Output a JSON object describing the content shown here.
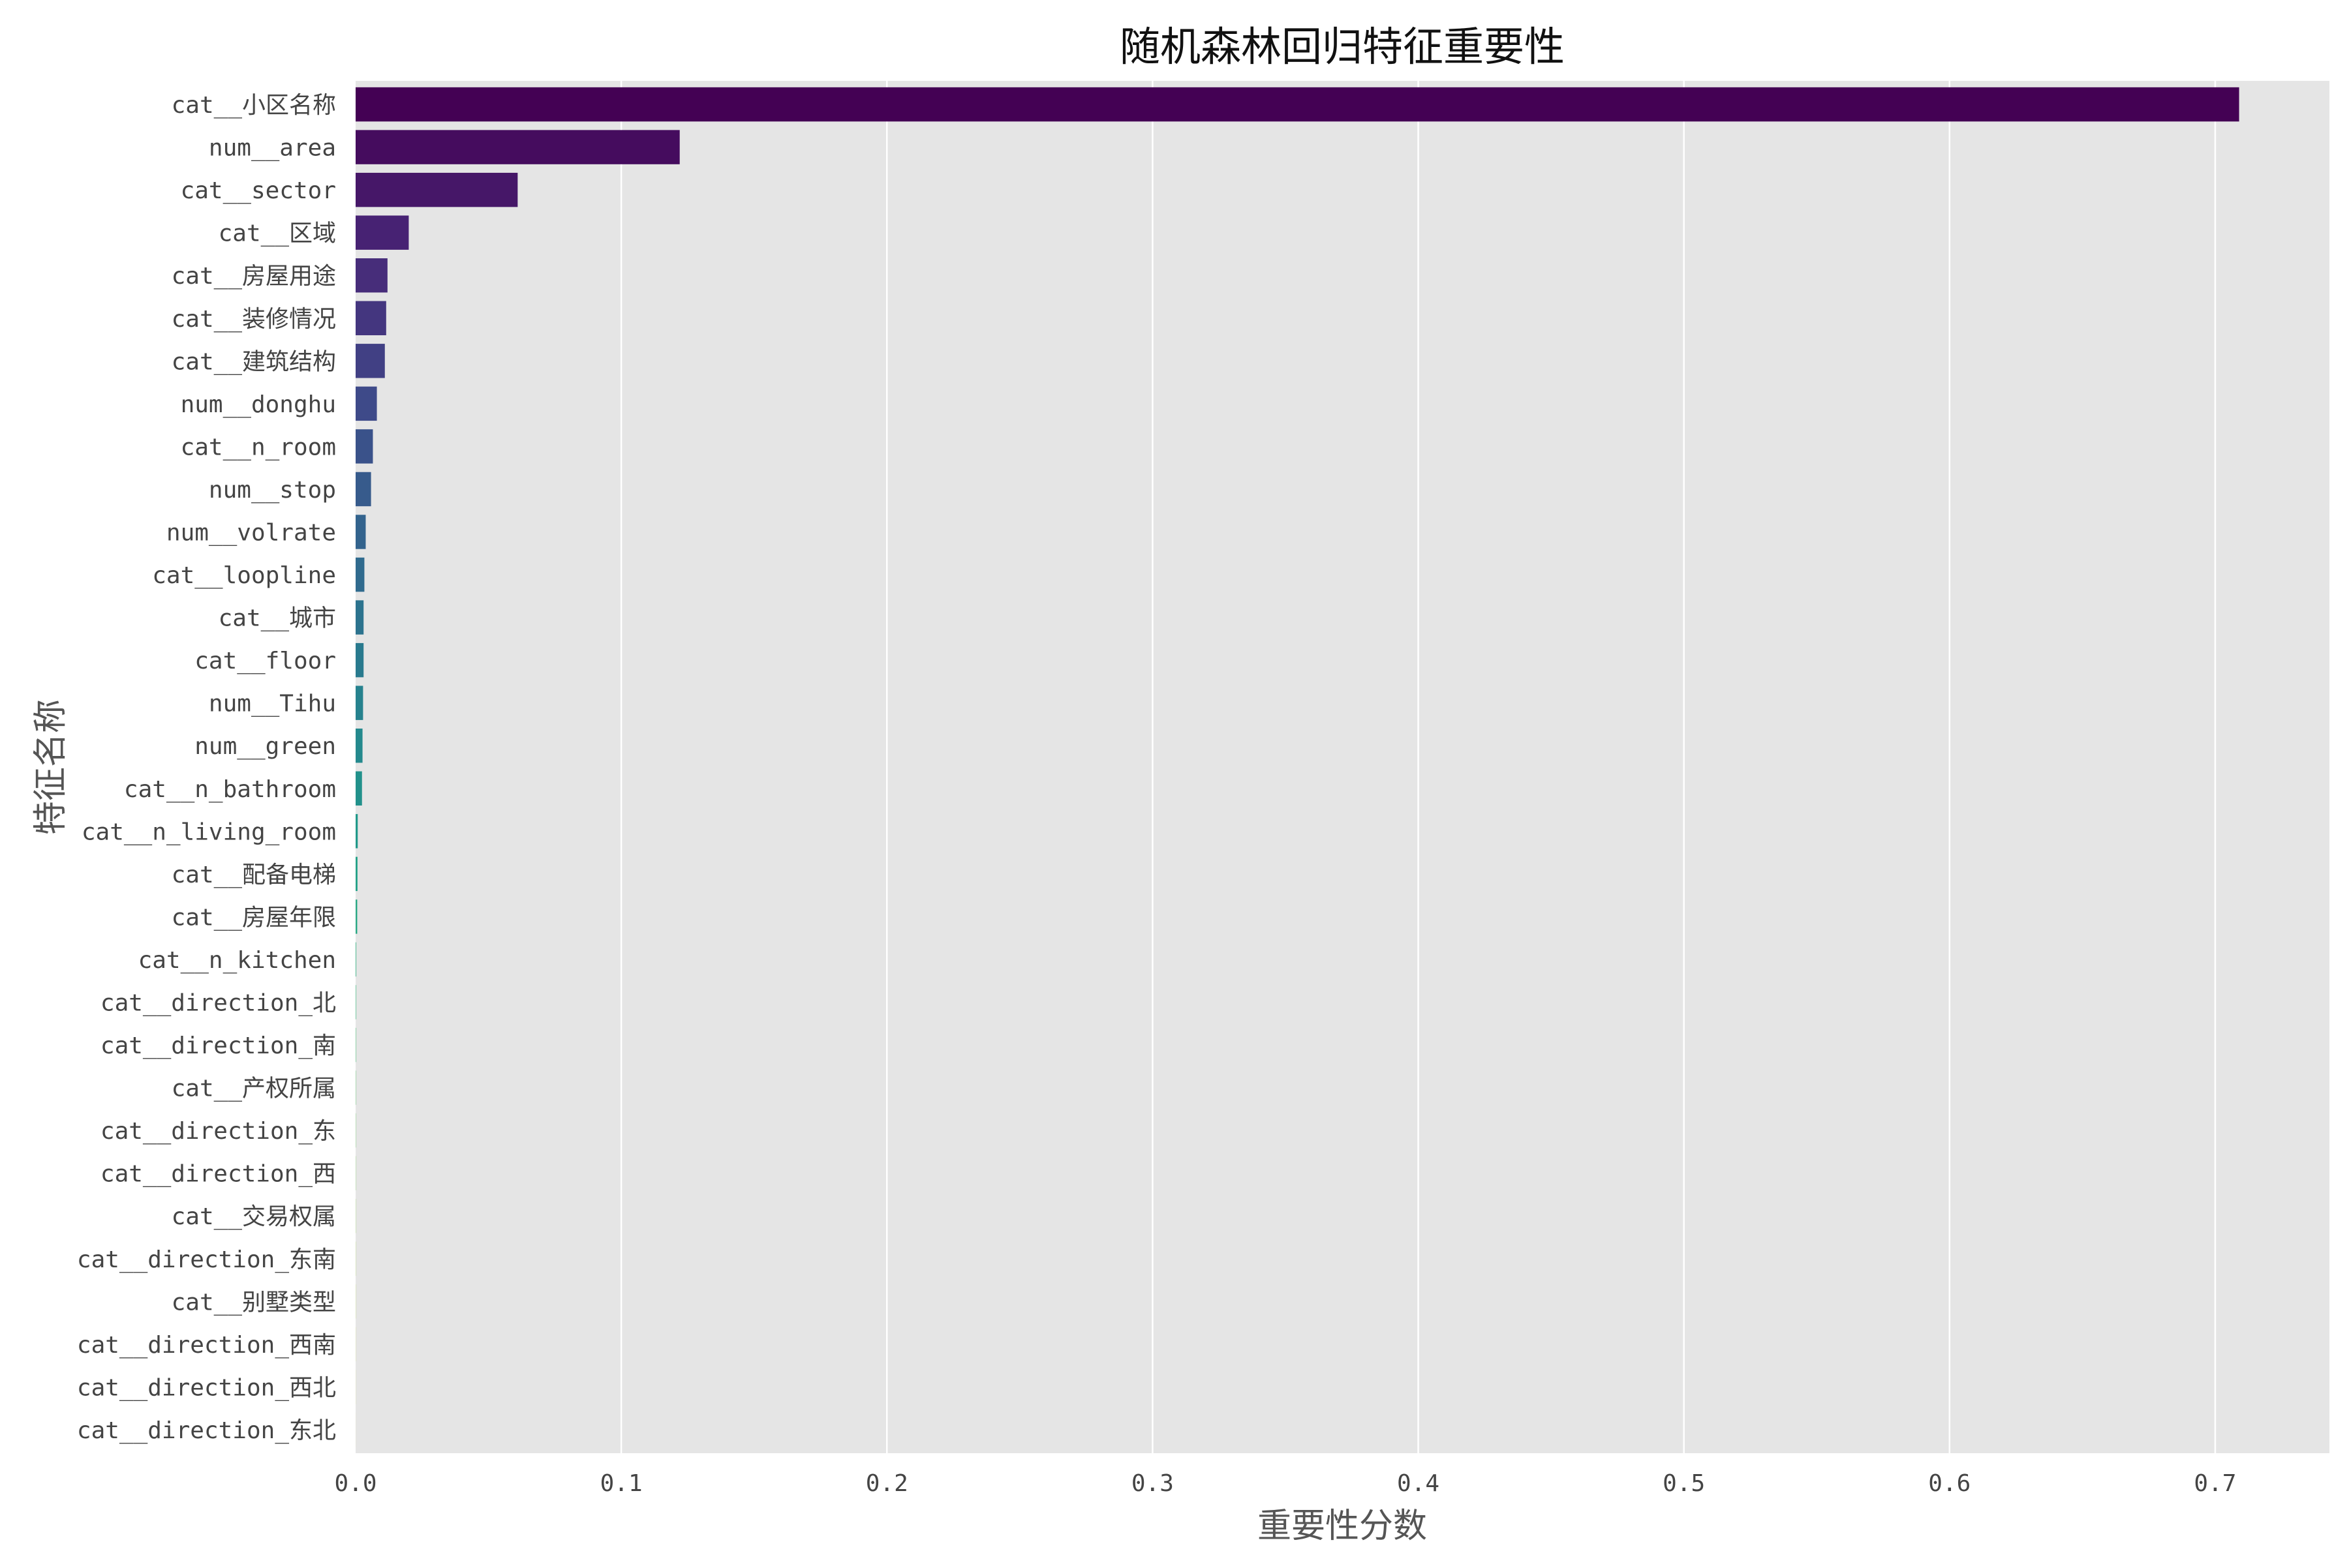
{
  "chart_data": {
    "type": "bar",
    "orientation": "horizontal",
    "title": "随机森林回归特征重要性",
    "xlabel": "重要性分数",
    "ylabel": "特征名称",
    "xlim": [
      0,
      0.743
    ],
    "xticks": [
      0.0,
      0.1,
      0.2,
      0.3,
      0.4,
      0.5,
      0.6,
      0.7
    ],
    "xtick_labels": [
      "0.0",
      "0.1",
      "0.2",
      "0.3",
      "0.4",
      "0.5",
      "0.6",
      "0.7"
    ],
    "grid": true,
    "palette": "viridis",
    "background_color": "#e5e5e5",
    "grid_color": "#ffffff",
    "categories": [
      "cat__小区名称",
      "num__area",
      "cat__sector",
      "cat__区域",
      "cat__房屋用途",
      "cat__装修情况",
      "cat__建筑结构",
      "num__donghu",
      "cat__n_room",
      "num__stop",
      "num__volrate",
      "cat__loopline",
      "cat__城市",
      "cat__floor",
      "num__Tihu",
      "num__green",
      "cat__n_bathroom",
      "cat__n_living_room",
      "cat__配备电梯",
      "cat__房屋年限",
      "cat__n_kitchen",
      "cat__direction_北",
      "cat__direction_南",
      "cat__产权所属",
      "cat__direction_东",
      "cat__direction_西",
      "cat__交易权属",
      "cat__direction_东南",
      "cat__别墅类型",
      "cat__direction_西南",
      "cat__direction_西北",
      "cat__direction_东北"
    ],
    "values": [
      0.709,
      0.122,
      0.061,
      0.02,
      0.012,
      0.0115,
      0.011,
      0.008,
      0.0065,
      0.0058,
      0.0038,
      0.0033,
      0.003,
      0.003,
      0.0028,
      0.0026,
      0.0024,
      0.0008,
      0.0007,
      0.0006,
      0.0002,
      0.00015,
      0.00013,
      0.0001,
      8e-05,
      7e-05,
      6e-05,
      5e-05,
      4e-05,
      3e-05,
      2e-05,
      1e-05
    ]
  }
}
